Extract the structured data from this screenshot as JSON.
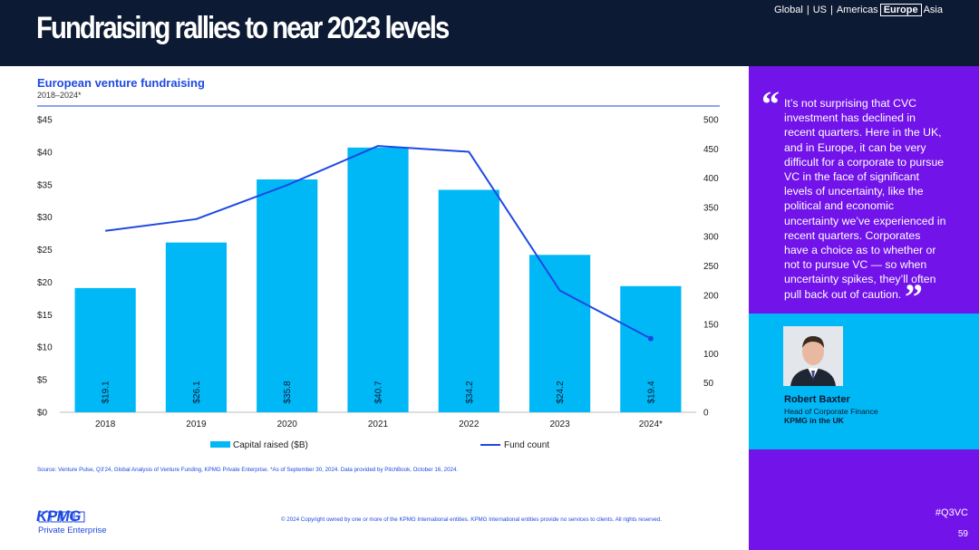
{
  "header": {
    "title": "Fundraising rallies to near 2023 levels",
    "nav": [
      "Global",
      "US",
      "Americas",
      "Europe",
      "Asia"
    ],
    "active_region": "Europe"
  },
  "chart_title": "European venture fundraising",
  "chart_subtitle": "2018–2024*",
  "chart_data": {
    "type": "bar",
    "title": "European venture fundraising",
    "subtitle": "2018–2024*",
    "categories": [
      "2018",
      "2019",
      "2020",
      "2021",
      "2022",
      "2023",
      "2024*"
    ],
    "series": [
      {
        "name": "Capital raised ($B)",
        "type": "bar",
        "axis": "left",
        "values": [
          19.1,
          26.1,
          35.8,
          40.7,
          34.2,
          24.2,
          19.4
        ],
        "data_labels": [
          "$19.1",
          "$26.1",
          "$35.8",
          "$40.7",
          "$34.2",
          "$24.2",
          "$19.4"
        ],
        "color": "#00b8f5"
      },
      {
        "name": "Fund count",
        "type": "line",
        "axis": "right",
        "values": [
          310,
          330,
          388,
          455,
          445,
          208,
          126
        ],
        "color": "#1e49e2"
      }
    ],
    "y_left": {
      "min": 0,
      "max": 45,
      "ticks": [
        "$0",
        "$5",
        "$10",
        "$15",
        "$20",
        "$25",
        "$30",
        "$35",
        "$40",
        "$45"
      ]
    },
    "y_right": {
      "min": 0,
      "max": 500,
      "ticks": [
        "0",
        "50",
        "100",
        "150",
        "200",
        "250",
        "300",
        "350",
        "400",
        "450",
        "500"
      ]
    },
    "legend": [
      "Capital raised ($B)",
      "Fund count"
    ],
    "legend_position": "bottom"
  },
  "quote": {
    "text": "It’s not surprising that CVC investment has declined in recent quarters. Here in the UK, and in Europe, it can be very difficult for a corporate to pursue VC in the face of significant levels of uncertainty, like the political and economic uncertainty we’ve experienced in recent quarters. Corporates have a choice as to whether or not to pursue VC — so when uncertainty spikes, they’ll often pull back out of caution.",
    "open_mark": "“",
    "close_mark": "”"
  },
  "person": {
    "name": "Robert Baxter",
    "title": "Head of Corporate Finance",
    "org": "KPMG in the UK"
  },
  "source": "Source: Venture Pulse, Q3'24, Global Analysis of Venture Funding, KPMG Private Enterprise. *As of September 30, 2024. Data provided by PitchBook, October 16, 2024.",
  "copyright": "© 2024 Copyright owned by one or more of the KPMG International entities. KPMG International entities provide no services to clients. All rights reserved.",
  "logo": {
    "brand": "KPMG",
    "sub": "Private Enterprise"
  },
  "hashtag": "#Q3VC",
  "page_number": "59",
  "colors": {
    "navy": "#0d1a33",
    "purple": "#7213ea",
    "cyan": "#00b8f5",
    "blue": "#1e49e2"
  }
}
